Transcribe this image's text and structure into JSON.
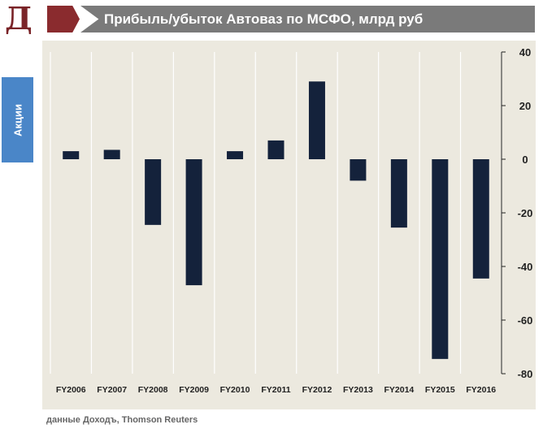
{
  "logo_letter": "Д",
  "header": {
    "title": "Прибыль/убыток Автоваз по МСФО, млрд руб"
  },
  "side_tab": {
    "label": "Акции"
  },
  "source": "данные Доходъ, Thomson Reuters",
  "colors": {
    "bar": "#14223b",
    "chart_bg": "#ece9df",
    "header_bar": "#7a7a7a",
    "header_arrow": "#8a2b2e",
    "side_tab": "#4a86c8"
  },
  "chart_data": {
    "type": "bar",
    "title": "Прибыль/убыток Автоваз по МСФО, млрд руб",
    "xlabel": "",
    "ylabel": "",
    "categories": [
      "FY2006",
      "FY2007",
      "FY2008",
      "FY2009",
      "FY2010",
      "FY2011",
      "FY2012",
      "FY2013",
      "FY2014",
      "FY2015",
      "FY2016"
    ],
    "values": [
      3,
      3.5,
      -24.5,
      -47,
      3,
      7,
      29,
      -8,
      -25.5,
      -74.5,
      -44.5
    ],
    "ylim": [
      -80,
      40
    ],
    "yticks": [
      40,
      20,
      0,
      -20,
      -40,
      -60,
      -80
    ],
    "y_axis_side": "right",
    "grid": "vertical"
  }
}
